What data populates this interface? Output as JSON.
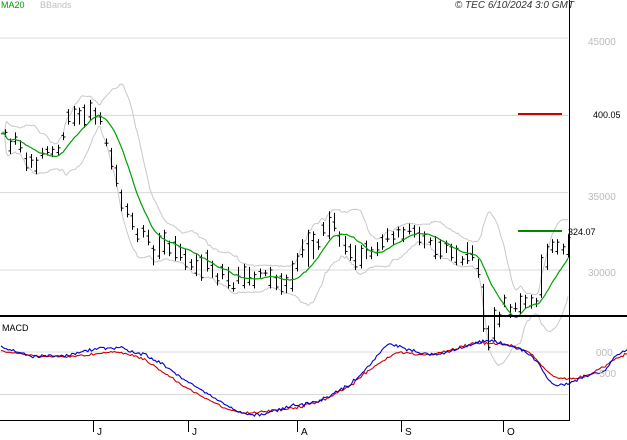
{
  "header": {
    "legend_ma": "MA20",
    "legend_bb": "BBands",
    "copyright": "© TEC 6/10/2024 3:0 GMT"
  },
  "colors": {
    "price": "#000000",
    "ma": "#00a000",
    "bbands": "#c8c8c8",
    "grid": "#d8d8d8",
    "resistance": "#cc0000",
    "support": "#008800",
    "macd": "#0000cc",
    "signal": "#cc0000"
  },
  "chart_data": [
    {
      "type": "ohlc",
      "name": "price",
      "y_axis": {
        "range": [
          1000,
          4700
        ],
        "ticks": [
          "45000",
          "35000",
          "30000"
        ],
        "grid": true
      },
      "x_axis": {
        "labels": [
          "J",
          "J",
          "A",
          "S",
          "O"
        ]
      },
      "resistance": {
        "value": 400.05,
        "label": "400.05"
      },
      "support": {
        "value": 324.07,
        "label": "324.07"
      },
      "close": [
        3880,
        3890,
        3890,
        3770,
        3790,
        3830,
        3830,
        3870,
        3860,
        3780,
        3820,
        3790,
        3720,
        3740,
        3660,
        3730,
        3680,
        3710,
        3640,
        3690,
        3710,
        3740,
        3770,
        3750,
        3780,
        3760,
        3760,
        3750,
        3770,
        3780,
        3760,
        3790,
        3790,
        3870,
        3860,
        3860,
        4020,
        4000,
        3960,
        3950,
        4000,
        4040,
        4010,
        3960,
        4030,
        4050,
        4020,
        3940,
        3990,
        3990,
        4080,
        4030,
        3960,
        3990,
        3990,
        4000,
        3960,
        3820,
        3830,
        3820,
        3770,
        3720,
        3670,
        3660,
        3640,
        3560,
        3500,
        3430,
        3400,
        3410,
        3380,
        3360,
        3350,
        3300,
        3280,
        3230,
        3250,
        3200,
        3270,
        3230,
        3250,
        3220,
        3240,
        3180,
        3140,
        3050,
        3130,
        3090,
        3180,
        3220,
        3120,
        3170,
        3240,
        3170,
        3150,
        3110,
        3180,
        3200,
        3080,
        3150,
        3140,
        3080,
        3100,
        3120,
        3020,
        3050,
        3040,
        3020,
        2980,
        3080,
        3060,
        3080,
        3020,
        2950,
        3110,
        3050,
        3010,
        3030,
        2970,
        3040,
        2960,
        2920,
        2930,
        3020,
        2960,
        2970,
        2930,
        3000,
        2900,
        2880,
        2900,
        2880,
        2930,
        3000,
        2960,
        2900,
        2930,
        3020,
        2920,
        3000,
        2950,
        2900,
        2920,
        2970,
        2990,
        2970,
        2980,
        2980,
        2980,
        2980,
        2900,
        2940,
        3000,
        2950,
        2920,
        2890,
        2960,
        2880,
        2860,
        2900,
        2870,
        2950,
        2880,
        2910,
        3040,
        3010,
        3010,
        3090,
        3100,
        3180,
        3130,
        3170,
        3040,
        3240,
        3190,
        3090,
        3230,
        3180,
        3150,
        3150,
        3290,
        3270,
        3240,
        3220,
        3360,
        3340,
        3310,
        3350,
        3270,
        3220,
        3170,
        3230,
        3160,
        3200,
        3120,
        3150,
        3090,
        3080,
        3060,
        3140,
        3020,
        3030,
        3100,
        3140,
        3170,
        3090,
        3130,
        3090,
        3120,
        3130,
        3110,
        3160,
        3130,
        3210,
        3160,
        3150,
        3200,
        3250,
        3200,
        3230,
        3180,
        3200,
        3260,
        3230,
        3260,
        3200,
        3250,
        3260,
        3250,
        3280,
        3250,
        3270,
        3240,
        3230,
        3240,
        3260,
        3180,
        3220,
        3160,
        3230,
        3180,
        3190,
        3190,
        3090,
        3200,
        3100,
        3180,
        3110,
        3090,
        3170,
        3130,
        3160,
        3150,
        3080,
        3080,
        3050,
        3070,
        3140,
        3050,
        3070,
        3070,
        3100,
        3160,
        3060,
        3100,
        3140,
        3080,
        3010,
        3050,
        2970,
        2890,
        2800,
        2620,
        2620,
        2520,
        2500,
        2560,
        2630,
        2740,
        2650,
        2700,
        2710,
        2780,
        2800,
        2820,
        2710,
        2740,
        2760,
        2750,
        2770,
        2750,
        2730,
        2790,
        2830,
        2780,
        2770,
        2820,
        2770,
        2800,
        2820,
        2780,
        2800,
        2800,
        2840,
        2960,
        3080,
        3020,
        3090,
        3150,
        3130,
        3180,
        3180,
        3120,
        3140,
        3180,
        3130,
        3120,
        3150,
        3100,
        3150,
        3210
      ]
    },
    {
      "type": "line",
      "name": "MACD",
      "title": "MACD",
      "y_axis": {
        "ticks": [
          "000",
          "-500"
        ]
      },
      "series": [
        {
          "name": "MACD",
          "values": [
            73,
            55,
            41,
            39,
            24,
            28,
            17,
            28,
            3,
            -2,
            -3,
            -9,
            -12,
            -11,
            -40,
            -34,
            -42,
            -53,
            -68,
            -45,
            -44,
            -62,
            -64,
            -33,
            -41,
            -41,
            -55,
            -33,
            -33,
            -48,
            -49,
            -47,
            -43,
            -51,
            -37,
            -45,
            -59,
            -28,
            -43,
            -45,
            -17,
            -18,
            -29,
            -4,
            -13,
            -1,
            5,
            19,
            20,
            4,
            38,
            12,
            22,
            41,
            31,
            46,
            56,
            53,
            55,
            28,
            48,
            47,
            51,
            41,
            32,
            58,
            51,
            53,
            63,
            52,
            35,
            28,
            3,
            -1,
            14,
            -11,
            -19,
            -13,
            -10,
            -39,
            -9,
            -19,
            -22,
            -63,
            -77,
            -70,
            -97,
            -99,
            -121,
            -104,
            -137,
            -126,
            -147,
            -184,
            -188,
            -195,
            -209,
            -229,
            -241,
            -272,
            -267,
            -286,
            -315,
            -318,
            -334,
            -342,
            -361,
            -364,
            -375,
            -396,
            -409,
            -420,
            -433,
            -442,
            -455,
            -482,
            -479,
            -498,
            -500,
            -527,
            -540,
            -544,
            -567,
            -574,
            -579,
            -593,
            -616,
            -624,
            -634,
            -651,
            -648,
            -674,
            -681,
            -696,
            -708,
            -699,
            -721,
            -714,
            -723,
            -736,
            -730,
            -736,
            -735,
            -755,
            -725,
            -727,
            -752,
            -727,
            -738,
            -737,
            -719,
            -715,
            -697,
            -700,
            -681,
            -684,
            -701,
            -666,
            -682,
            -657,
            -672,
            -639,
            -654,
            -647,
            -627,
            -611,
            -631,
            -630,
            -631,
            -614,
            -608,
            -642,
            -595,
            -592,
            -612,
            -598,
            -582,
            -587,
            -585,
            -590,
            -565,
            -576,
            -531,
            -536,
            -527,
            -535,
            -518,
            -493,
            -483,
            -460,
            -471,
            -458,
            -425,
            -444,
            -398,
            -403,
            -405,
            -396,
            -369,
            -321,
            -335,
            -310,
            -288,
            -268,
            -241,
            -227,
            -192,
            -168,
            -162,
            -137,
            -100,
            -89,
            -43,
            -28,
            -10,
            25,
            48,
            63,
            82,
            95,
            97,
            83,
            68,
            87,
            56,
            76,
            63,
            51,
            43,
            14,
            35,
            28,
            8,
            29,
            2,
            -3,
            -10,
            -23,
            -16,
            -10,
            -12,
            -24,
            -37,
            -15,
            -28,
            -18,
            -36,
            -24,
            -26,
            -10,
            -24,
            -5,
            5,
            -3,
            10,
            29,
            17,
            26,
            38,
            57,
            43,
            51,
            60,
            68,
            87,
            74,
            89,
            94,
            116,
            102,
            132,
            107,
            140,
            119,
            137,
            130,
            125,
            140,
            125,
            134,
            104,
            103,
            121,
            90,
            94,
            88,
            76,
            71,
            67,
            65,
            52,
            34,
            37,
            44,
            11,
            26,
            -2,
            -20,
            -34,
            -38,
            -56,
            -95,
            -104,
            -120,
            -149,
            -191,
            -232,
            -260,
            -299,
            -327,
            -343,
            -369,
            -381,
            -391,
            -399,
            -391,
            -375,
            -382,
            -393,
            -366,
            -382,
            -370,
            -348,
            -348,
            -335,
            -345,
            -303,
            -305,
            -310,
            -273,
            -276,
            -291,
            -275,
            -262,
            -257,
            -245,
            -245,
            -253,
            -248,
            -244,
            -226,
            -220,
            -183,
            -163,
            -125,
            -96,
            -59,
            -46,
            -31,
            -29,
            -9,
            12,
            5,
            21,
            36,
            47,
            63,
            71,
            90,
            97,
            104
          ]
        },
        {
          "name": "Signal",
          "values": [
            18,
            14,
            6,
            -5,
            -2,
            -3,
            -11,
            -11,
            -8,
            -15,
            -18,
            -17,
            -23,
            -31,
            -27,
            -34,
            -38,
            -32,
            -41,
            -40,
            -40,
            -53,
            -50,
            -57,
            -51,
            -52,
            -56,
            -49,
            -53,
            -60,
            -55,
            -42,
            -57,
            -56,
            -51,
            -56,
            -58,
            -63,
            -51,
            -60,
            -46,
            -48,
            -54,
            -42,
            -42,
            -33,
            -37,
            -47,
            -41,
            -44,
            -40,
            -15,
            -36,
            -26,
            -20,
            -19,
            -19,
            -15,
            -3,
            -11,
            -6,
            -6,
            6,
            -4,
            6,
            -4,
            -3,
            -8,
            -4,
            -24,
            -15,
            -22,
            -33,
            -41,
            -28,
            -50,
            -44,
            -55,
            -76,
            -65,
            -91,
            -79,
            -97,
            -124,
            -140,
            -147,
            -150,
            -168,
            -186,
            -211,
            -216,
            -235,
            -247,
            -262,
            -266,
            -291,
            -297,
            -301,
            -331,
            -352,
            -353,
            -372,
            -392,
            -407,
            -411,
            -424,
            -433,
            -439,
            -463,
            -479,
            -479,
            -489,
            -507,
            -519,
            -529,
            -546,
            -548,
            -556,
            -573,
            -582,
            -593,
            -602,
            -608,
            -614,
            -640,
            -656,
            -658,
            -663,
            -676,
            -679,
            -686,
            -687,
            -694,
            -702,
            -702,
            -710,
            -715,
            -720,
            -723,
            -705,
            -723,
            -719,
            -716,
            -705,
            -719,
            -717,
            -703,
            -693,
            -702,
            -701,
            -706,
            -686,
            -703,
            -677,
            -681,
            -680,
            -686,
            -667,
            -693,
            -677,
            -676,
            -675,
            -672,
            -654,
            -657,
            -667,
            -655,
            -666,
            -633,
            -650,
            -654,
            -624,
            -617,
            -607,
            -616,
            -605,
            -599,
            -609,
            -590,
            -593,
            -577,
            -557,
            -553,
            -565,
            -543,
            -540,
            -520,
            -519,
            -500,
            -482,
            -480,
            -445,
            -457,
            -449,
            -433,
            -413,
            -416,
            -390,
            -383,
            -383,
            -333,
            -323,
            -307,
            -302,
            -270,
            -241,
            -256,
            -219,
            -213,
            -202,
            -187,
            -164,
            -154,
            -138,
            -128,
            -111,
            -103,
            -93,
            -62,
            -63,
            -53,
            -33,
            -21,
            -11,
            -10,
            -2,
            4,
            -19,
            -14,
            -3,
            -10,
            -16,
            -10,
            -29,
            -36,
            -34,
            -26,
            -31,
            -32,
            -37,
            -31,
            -25,
            -40,
            -30,
            -34,
            -28,
            -15,
            -3,
            -8,
            -2,
            13,
            0,
            18,
            14,
            27,
            41,
            27,
            37,
            35,
            68,
            69,
            61,
            90,
            60,
            84,
            93,
            110,
            100,
            101,
            116,
            95,
            105,
            122,
            90,
            113,
            90,
            103,
            99,
            109,
            88,
            88,
            104,
            97,
            84,
            85,
            83,
            88,
            67,
            87,
            67,
            67,
            51,
            53,
            42,
            31,
            18,
            16,
            7,
            -2,
            -24,
            -32,
            -66,
            -84,
            -109,
            -130,
            -161,
            -174,
            -201,
            -219,
            -238,
            -257,
            -272,
            -290,
            -293,
            -305,
            -312,
            -306,
            -312,
            -303,
            -324,
            -318,
            -305,
            -318,
            -306,
            -318,
            -310,
            -315,
            -284,
            -300,
            -296,
            -282,
            -271,
            -265,
            -261,
            -245,
            -233,
            -211,
            -208,
            -194,
            -176,
            -179,
            -176,
            -146,
            -137,
            -113,
            -101,
            -94,
            -73,
            -69,
            -66,
            -48,
            -56,
            -18,
            -23,
            -12,
            15,
            4,
            13,
            25
          ]
        }
      ]
    }
  ]
}
